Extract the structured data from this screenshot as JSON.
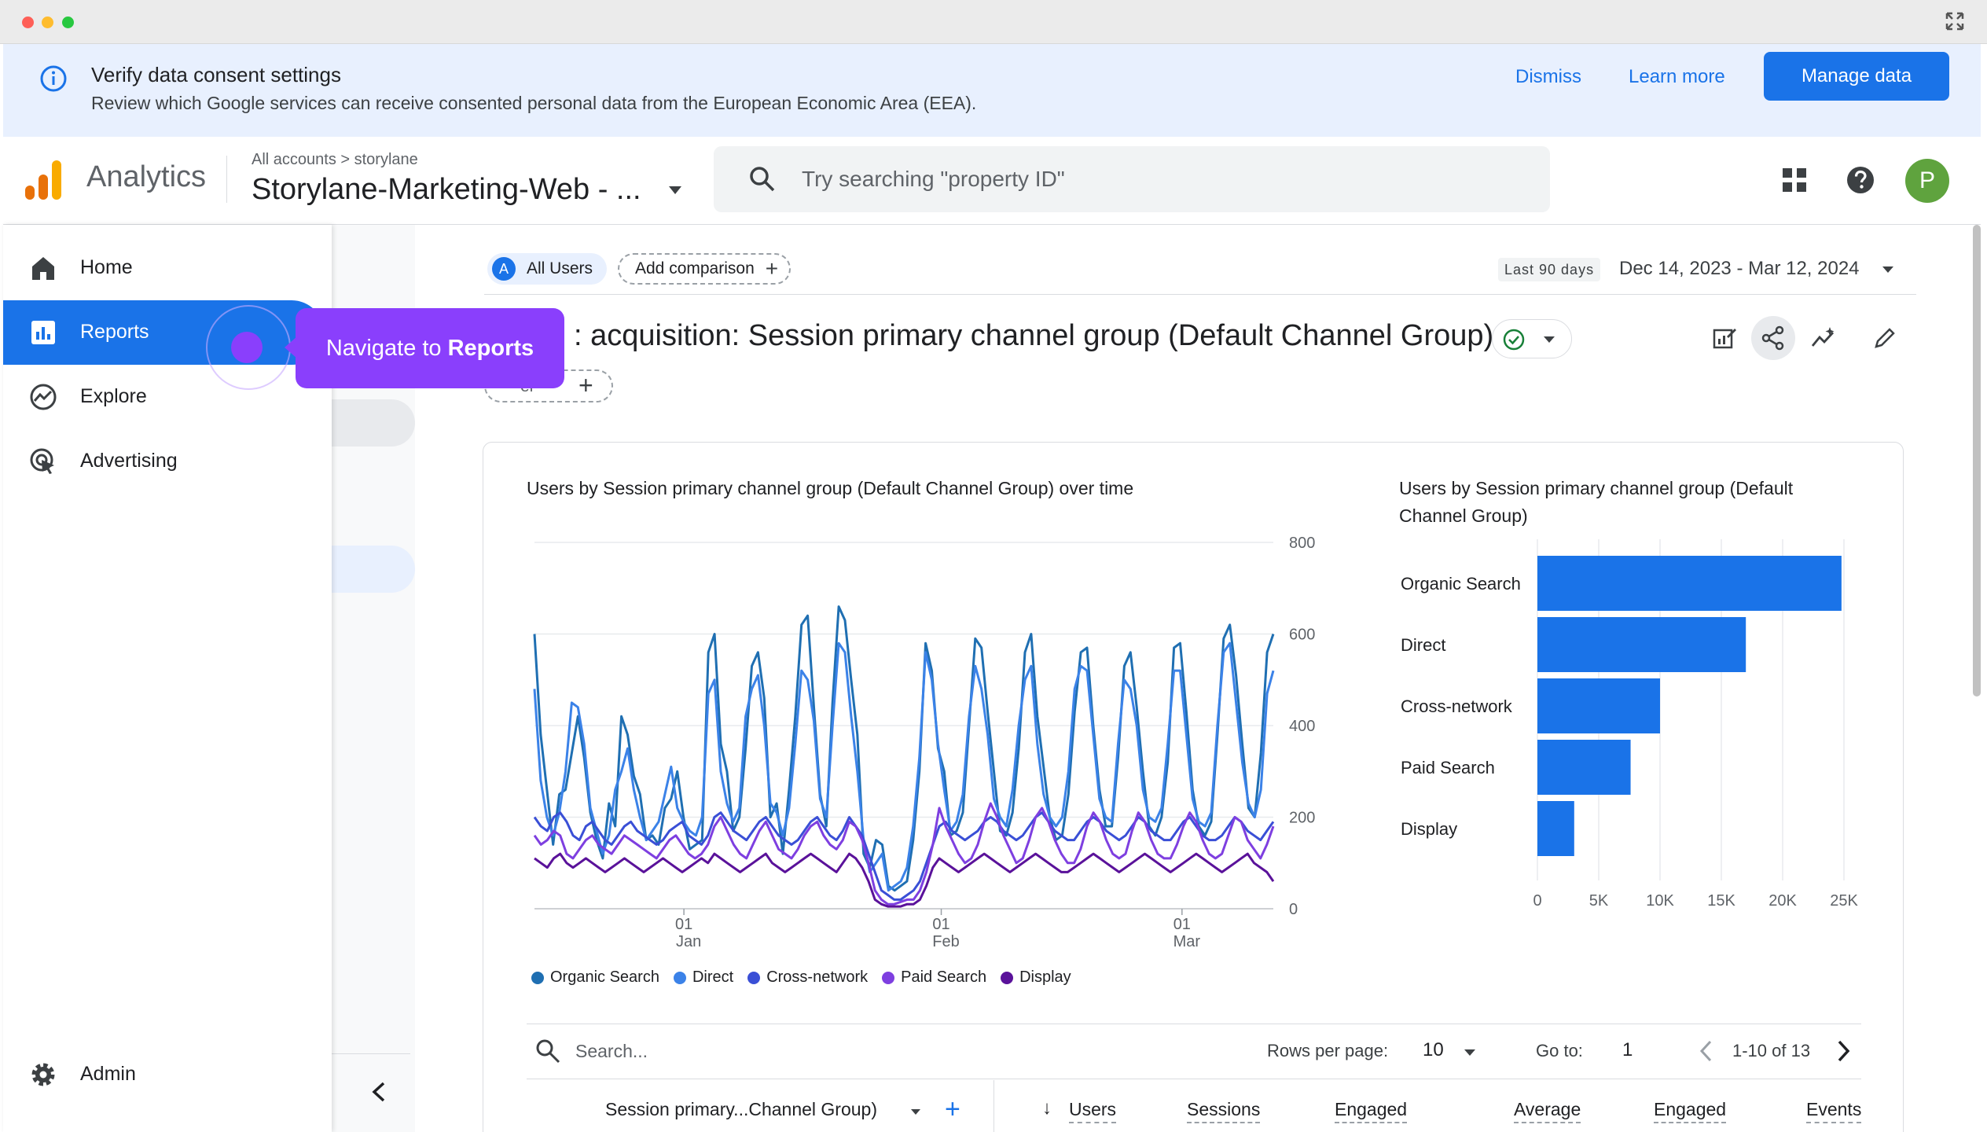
{
  "banner": {
    "title": "Verify data consent settings",
    "subtitle": "Review which Google services can receive consented personal data from the European Economic Area (EEA).",
    "dismiss": "Dismiss",
    "learn_more": "Learn more",
    "manage": "Manage data"
  },
  "header": {
    "app_name": "Analytics",
    "breadcrumb": "All accounts > storylane",
    "property": "Storylane-Marketing-Web - ...",
    "search_placeholder": "Try searching \"property ID\"",
    "avatar_letter": "P"
  },
  "sidebar": {
    "items": [
      {
        "label": "Home",
        "icon": "home-icon"
      },
      {
        "label": "Reports",
        "icon": "reports-icon"
      },
      {
        "label": "Explore",
        "icon": "explore-icon"
      },
      {
        "label": "Advertising",
        "icon": "advertising-icon"
      }
    ],
    "admin": "Admin"
  },
  "tooltip": {
    "prefix": "Navigate to",
    "target": "Reports"
  },
  "toolbar": {
    "segment_letter": "A",
    "segment": "All Users",
    "add_comparison": "Add comparison",
    "period_badge": "Last 90 days",
    "date_range": "Dec 14, 2023 - Mar 12, 2024"
  },
  "report": {
    "title": ": acquisition: Session primary channel group (Default Channel Group)",
    "filter_fragment": "er"
  },
  "colors": {
    "accent": "#1a73e8",
    "tooltip": "#8a3ffc",
    "organic_search": "#1f6fb2",
    "direct": "#3b82e8",
    "cross_network": "#3a4fd6",
    "paid_search": "#7e3fe0",
    "display": "#5a129a"
  },
  "chart_data": [
    {
      "type": "line",
      "title": "Users by Session primary channel group (Default Channel Group) over time",
      "y_ticks": [
        "800",
        "600",
        "400",
        "200",
        "0"
      ],
      "ylim": [
        0,
        800
      ],
      "x_ticks": [
        {
          "day": "01",
          "month": "Jan"
        },
        {
          "day": "01",
          "month": "Feb"
        },
        {
          "day": "01",
          "month": "Mar"
        }
      ],
      "x_start": "2023-12-14",
      "x_end": "2024-03-12",
      "series": [
        {
          "name": "Organic Search",
          "values": [
            600,
            380,
            260,
            140,
            250,
            260,
            340,
            420,
            330,
            210,
            150,
            110,
            230,
            180,
            420,
            380,
            290,
            250,
            150,
            160,
            140,
            220,
            240,
            300,
            200,
            130,
            140,
            150,
            560,
            600,
            360,
            300,
            170,
            200,
            350,
            530,
            560,
            460,
            200,
            230,
            120,
            260,
            420,
            620,
            640,
            440,
            250,
            180,
            450,
            660,
            630,
            500,
            380,
            120,
            90,
            150,
            140,
            50,
            40,
            50,
            60,
            150,
            300,
            580,
            520,
            350,
            300,
            160,
            170,
            210,
            400,
            590,
            570,
            430,
            300,
            170,
            160,
            210,
            350,
            560,
            600,
            420,
            310,
            200,
            150,
            160,
            250,
            430,
            560,
            570,
            400,
            260,
            180,
            180,
            330,
            530,
            560,
            440,
            300,
            180,
            160,
            200,
            320,
            570,
            580,
            430,
            260,
            180,
            160,
            190,
            380,
            590,
            620,
            510,
            360,
            220,
            200,
            340,
            560,
            600
          ]
        },
        {
          "name": "Direct",
          "values": [
            480,
            280,
            200,
            160,
            210,
            300,
            450,
            440,
            360,
            220,
            170,
            120,
            160,
            260,
            300,
            350,
            260,
            200,
            150,
            170,
            190,
            250,
            310,
            220,
            190,
            170,
            160,
            200,
            470,
            500,
            300,
            230,
            190,
            220,
            420,
            480,
            510,
            400,
            230,
            210,
            160,
            220,
            360,
            520,
            500,
            410,
            240,
            200,
            400,
            580,
            560,
            420,
            300,
            150,
            80,
            100,
            120,
            40,
            50,
            60,
            90,
            180,
            330,
            560,
            500,
            360,
            260,
            170,
            190,
            250,
            420,
            530,
            480,
            380,
            240,
            200,
            180,
            260,
            400,
            500,
            530,
            360,
            250,
            200,
            180,
            200,
            300,
            480,
            530,
            520,
            380,
            240,
            200,
            190,
            360,
            500,
            480,
            400,
            260,
            200,
            190,
            220,
            360,
            520,
            520,
            380,
            240,
            190,
            180,
            210,
            400,
            560,
            580,
            450,
            320,
            230,
            200,
            260,
            470,
            520
          ]
        },
        {
          "name": "Cross-network",
          "values": [
            200,
            180,
            170,
            200,
            210,
            190,
            160,
            150,
            180,
            190,
            170,
            150,
            140,
            160,
            180,
            190,
            170,
            160,
            150,
            140,
            150,
            170,
            180,
            190,
            160,
            150,
            140,
            160,
            200,
            210,
            190,
            170,
            160,
            150,
            170,
            190,
            200,
            180,
            160,
            150,
            140,
            150,
            170,
            190,
            200,
            180,
            160,
            150,
            170,
            200,
            180,
            160,
            120,
            80,
            40,
            30,
            20,
            20,
            30,
            40,
            60,
            100,
            140,
            180,
            190,
            170,
            160,
            150,
            160,
            170,
            190,
            200,
            190,
            170,
            160,
            150,
            160,
            180,
            200,
            210,
            190,
            170,
            160,
            150,
            150,
            170,
            190,
            200,
            190,
            170,
            160,
            150,
            160,
            180,
            200,
            190,
            170,
            160,
            150,
            150,
            170,
            190,
            200,
            180,
            160,
            150,
            150,
            160,
            180,
            200,
            190,
            170,
            160,
            150,
            170,
            190
          ]
        },
        {
          "name": "Paid Search",
          "values": [
            160,
            140,
            150,
            170,
            160,
            120,
            110,
            130,
            150,
            160,
            140,
            130,
            120,
            140,
            160,
            150,
            140,
            130,
            120,
            110,
            130,
            150,
            160,
            140,
            120,
            110,
            120,
            140,
            180,
            200,
            170,
            140,
            120,
            110,
            140,
            170,
            190,
            160,
            130,
            120,
            110,
            130,
            160,
            180,
            190,
            160,
            140,
            130,
            150,
            190,
            180,
            150,
            100,
            40,
            20,
            10,
            10,
            15,
            20,
            20,
            40,
            80,
            140,
            220,
            180,
            150,
            120,
            100,
            110,
            140,
            190,
            230,
            200,
            160,
            130,
            100,
            110,
            150,
            200,
            220,
            190,
            150,
            120,
            100,
            100,
            130,
            180,
            210,
            190,
            150,
            120,
            110,
            120,
            170,
            210,
            190,
            150,
            120,
            110,
            110,
            140,
            180,
            210,
            190,
            150,
            120,
            110,
            120,
            160,
            200,
            190,
            150,
            130,
            110,
            140,
            180
          ]
        },
        {
          "name": "Display",
          "values": [
            110,
            100,
            90,
            110,
            120,
            100,
            90,
            100,
            110,
            100,
            90,
            80,
            90,
            100,
            110,
            100,
            90,
            80,
            90,
            100,
            110,
            100,
            90,
            80,
            90,
            100,
            110,
            100,
            120,
            110,
            100,
            90,
            80,
            90,
            100,
            110,
            120,
            100,
            90,
            80,
            90,
            100,
            110,
            120,
            110,
            100,
            90,
            80,
            100,
            120,
            110,
            90,
            60,
            20,
            10,
            5,
            5,
            5,
            10,
            10,
            20,
            50,
            90,
            110,
            100,
            90,
            80,
            90,
            100,
            110,
            120,
            110,
            100,
            90,
            80,
            90,
            100,
            110,
            120,
            110,
            100,
            90,
            80,
            80,
            90,
            100,
            110,
            120,
            110,
            100,
            90,
            80,
            90,
            100,
            110,
            120,
            110,
            100,
            90,
            80,
            90,
            100,
            110,
            120,
            110,
            100,
            90,
            80,
            90,
            100,
            110,
            120,
            100,
            90,
            80,
            60
          ]
        }
      ]
    },
    {
      "type": "bar",
      "orientation": "horizontal",
      "title": "Users by Session primary channel group (Default Channel Group)",
      "categories": [
        "Organic Search",
        "Direct",
        "Cross-network",
        "Paid Search",
        "Display"
      ],
      "values": [
        24800,
        17000,
        10000,
        7600,
        3000
      ],
      "x_ticks": [
        "0",
        "5K",
        "10K",
        "15K",
        "20K",
        "25K"
      ],
      "xlim": [
        0,
        25000
      ]
    }
  ],
  "table": {
    "search_placeholder": "Search...",
    "rows_per_page_label": "Rows per page:",
    "rows_per_page": "10",
    "goto_label": "Go to:",
    "goto_value": "1",
    "page_range": "1-10 of 13",
    "dimension_header": "Session primary...Channel Group)",
    "columns": [
      "Users",
      "Sessions",
      "Engaged",
      "Average",
      "Engaged",
      "Events"
    ]
  }
}
